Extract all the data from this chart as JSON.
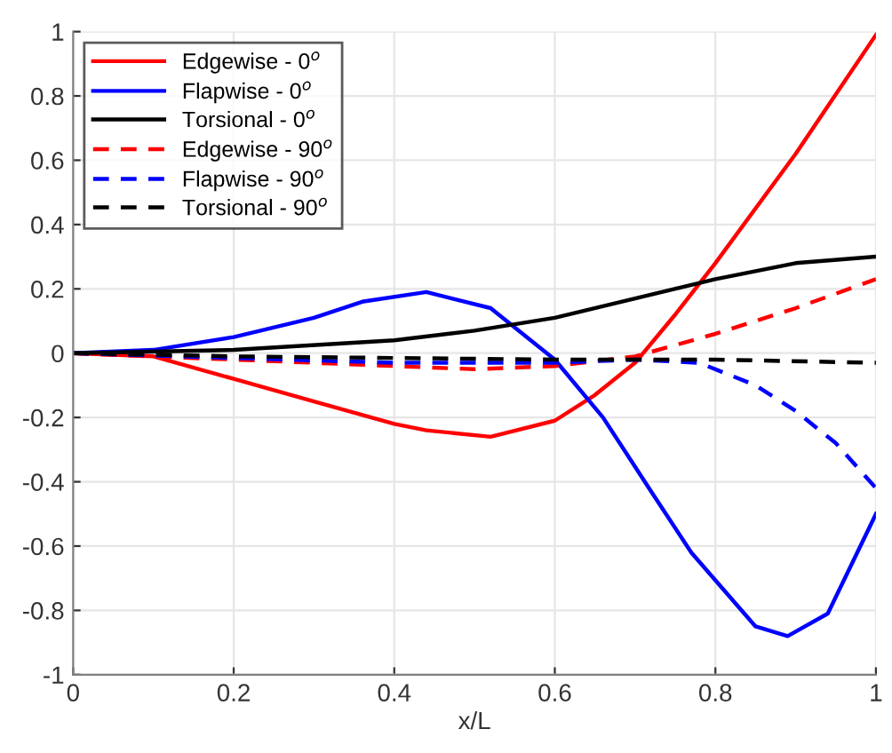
{
  "chart_data": {
    "type": "line",
    "xlabel": "x/L",
    "xlim": [
      0,
      1
    ],
    "ylim": [
      -1,
      1
    ],
    "xticks": [
      0,
      0.2,
      0.4,
      0.6,
      0.8,
      1
    ],
    "yticks": [
      -1,
      -0.8,
      -0.6,
      -0.4,
      -0.2,
      0,
      0.2,
      0.4,
      0.6,
      0.8,
      1
    ],
    "grid": true,
    "legend": "top left",
    "series": [
      {
        "name": "Edgewise - 0$^{o}$",
        "color": "#ff0000",
        "line_style": "solid",
        "x": [
          0,
          0.1,
          0.2,
          0.3,
          0.4,
          0.44,
          0.52,
          0.6,
          0.65,
          0.7,
          0.75,
          0.8,
          0.9,
          1.0
        ],
        "values": [
          0,
          -0.01,
          -0.08,
          -0.15,
          -0.22,
          -0.24,
          -0.26,
          -0.21,
          -0.13,
          -0.03,
          0.12,
          0.28,
          0.62,
          0.99
        ]
      },
      {
        "name": "Flapwise - 0$^{o}$",
        "color": "#0000ff",
        "line_style": "solid",
        "x": [
          0,
          0.1,
          0.2,
          0.3,
          0.36,
          0.44,
          0.52,
          0.6,
          0.66,
          0.72,
          0.77,
          0.85,
          0.89,
          0.94,
          1.0
        ],
        "values": [
          0,
          0.01,
          0.05,
          0.11,
          0.16,
          0.19,
          0.14,
          -0.02,
          -0.2,
          -0.43,
          -0.62,
          -0.85,
          -0.88,
          -0.81,
          -0.5
        ]
      },
      {
        "name": "Torsional - 0$^{o}$",
        "color": "#000000",
        "line_style": "solid",
        "x": [
          0,
          0.2,
          0.4,
          0.5,
          0.6,
          0.7,
          0.8,
          0.9,
          1.0
        ],
        "values": [
          0,
          0.01,
          0.04,
          0.07,
          0.11,
          0.17,
          0.23,
          0.28,
          0.3
        ]
      },
      {
        "name": "Edgewise - 90$^{o}$",
        "color": "#ff0000",
        "line_style": "dashed",
        "x": [
          0,
          0.2,
          0.4,
          0.5,
          0.6,
          0.7,
          0.8,
          0.9,
          1.0
        ],
        "values": [
          0,
          -0.02,
          -0.04,
          -0.05,
          -0.04,
          -0.01,
          0.06,
          0.14,
          0.23
        ]
      },
      {
        "name": "Flapwise - 90$^{o}$",
        "color": "#0000ff",
        "line_style": "dashed",
        "x": [
          0,
          0.2,
          0.4,
          0.6,
          0.7,
          0.78,
          0.85,
          0.9,
          0.95,
          1.0
        ],
        "values": [
          0,
          -0.015,
          -0.03,
          -0.03,
          -0.02,
          -0.03,
          -0.1,
          -0.18,
          -0.28,
          -0.42
        ]
      },
      {
        "name": "Torsional - 90$^{o}$",
        "color": "#000000",
        "line_style": "dashed",
        "x": [
          0,
          0.2,
          0.4,
          0.6,
          0.8,
          1.0
        ],
        "values": [
          0,
          -0.01,
          -0.015,
          -0.02,
          -0.02,
          -0.03
        ]
      }
    ]
  }
}
